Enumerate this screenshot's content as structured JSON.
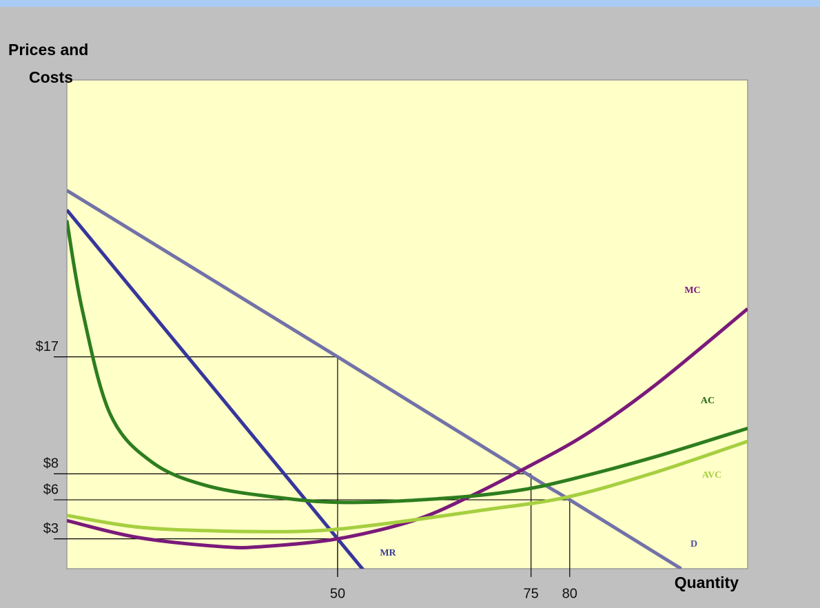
{
  "chart_data": {
    "type": "line",
    "ylabel": [
      "Prices and",
      "Costs"
    ],
    "xlabel": "Quantity",
    "xlim": [
      15,
      103
    ],
    "ylim": [
      0.7,
      38.3
    ],
    "xticks": [
      50,
      75,
      80
    ],
    "yticks": [
      {
        "value": 3,
        "label": "$3"
      },
      {
        "value": 6,
        "label": "$6"
      },
      {
        "value": 8,
        "label": "$8"
      },
      {
        "value": 17,
        "label": "$17"
      }
    ],
    "guides": [
      {
        "x": 50,
        "y": 17
      },
      {
        "x": 75,
        "y": 8
      },
      {
        "x": 80,
        "y": 6
      },
      {
        "x": 50,
        "y": 3
      }
    ],
    "series": [
      {
        "name": "D",
        "color": "#7272a8",
        "label_color": "#5050a0",
        "x": [
          15,
          50,
          75,
          80,
          94.4
        ],
        "values": [
          29.8,
          17,
          7.8,
          6,
          0.7
        ]
      },
      {
        "name": "MR",
        "color": "#36369c",
        "label_color": "#3a3a9a",
        "x": [
          15,
          50,
          53.2
        ],
        "values": [
          28.3,
          3,
          0.7
        ]
      },
      {
        "name": "MC",
        "color": "#7a1a7a",
        "label_color": "#7a1a7a",
        "x": [
          15,
          24.2,
          34.9,
          40.2,
          50,
          59.8,
          66.9,
          73.2,
          82,
          91,
          103
        ],
        "values": [
          4.4,
          3.1,
          2.4,
          2.4,
          3,
          4.4,
          6.2,
          8.1,
          11,
          14.8,
          20.7
        ]
      },
      {
        "name": "AC",
        "color": "#2e7d1e",
        "label_color": "#1e6a14",
        "x": [
          15,
          17,
          20.6,
          26,
          33,
          42,
          50.9,
          63.4,
          73.1,
          80.3,
          91,
          103
        ],
        "values": [
          27.5,
          20.6,
          12.6,
          8.9,
          7.1,
          6.2,
          5.8,
          6.1,
          6.7,
          7.6,
          9.3,
          11.5
        ]
      },
      {
        "name": "AVC",
        "color": "#a6cf40",
        "label_color": "#a6cf40",
        "x": [
          15,
          24.2,
          34.9,
          46.4,
          55.3,
          68.7,
          79.6,
          91,
          103
        ],
        "values": [
          4.8,
          3.9,
          3.6,
          3.6,
          4.1,
          5.2,
          6.2,
          8.1,
          10.5
        ]
      }
    ]
  }
}
